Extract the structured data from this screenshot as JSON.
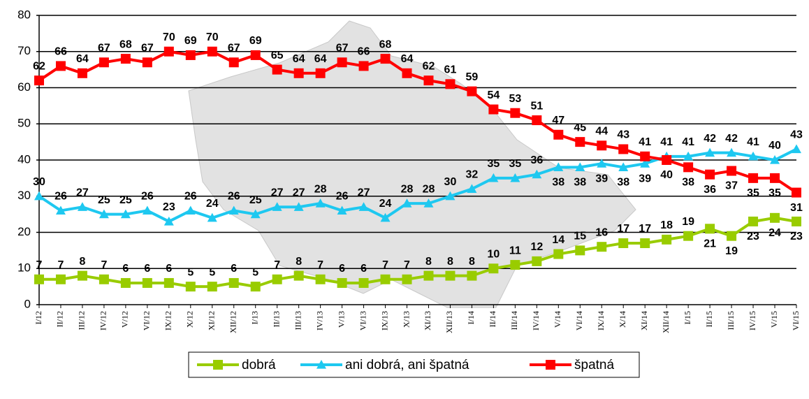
{
  "chart_data": {
    "type": "line",
    "categories": [
      "I/12",
      "II/12",
      "III/12",
      "IV/12",
      "V/12",
      "VI/12",
      "IX/12",
      "X/12",
      "XI/12",
      "XII/12",
      "I/13",
      "II/13",
      "III/13",
      "IV/13",
      "V/13",
      "VI/13",
      "IX/13",
      "X/13",
      "XI/13",
      "XII/13",
      "I/14",
      "II/14",
      "III/14",
      "IV/14",
      "V/14",
      "VI/14",
      "IX/14",
      "X/14",
      "XI/14",
      "XII/14",
      "I/15",
      "II/15",
      "III/15",
      "IV/15",
      "V/15",
      "VI/15"
    ],
    "series": [
      {
        "name": "dobrá",
        "color": "#99cc00",
        "marker": "square",
        "values": [
          7,
          7,
          8,
          7,
          6,
          6,
          6,
          5,
          5,
          6,
          5,
          7,
          8,
          7,
          6,
          6,
          7,
          7,
          8,
          8,
          8,
          10,
          11,
          12,
          14,
          15,
          16,
          17,
          17,
          18,
          19,
          21,
          19,
          23,
          24,
          23
        ]
      },
      {
        "name": "ani dobrá, ani špatná",
        "color": "#1ec8f0",
        "marker": "triangle",
        "values": [
          30,
          26,
          27,
          25,
          25,
          26,
          23,
          26,
          24,
          26,
          25,
          27,
          27,
          28,
          26,
          27,
          24,
          28,
          28,
          30,
          32,
          35,
          35,
          36,
          38,
          38,
          39,
          38,
          39,
          41,
          41,
          42,
          42,
          41,
          40,
          43
        ]
      },
      {
        "name": "špatná",
        "color": "#ff0000",
        "marker": "square",
        "values": [
          62,
          66,
          64,
          67,
          68,
          67,
          70,
          69,
          70,
          67,
          69,
          65,
          64,
          64,
          67,
          66,
          68,
          64,
          62,
          61,
          59,
          54,
          53,
          51,
          47,
          45,
          44,
          43,
          41,
          40,
          38,
          36,
          37,
          35,
          35,
          31
        ]
      }
    ],
    "ylim": [
      0,
      80
    ],
    "yticks": [
      0,
      10,
      20,
      30,
      40,
      50,
      60,
      70,
      80
    ],
    "grid": true
  }
}
